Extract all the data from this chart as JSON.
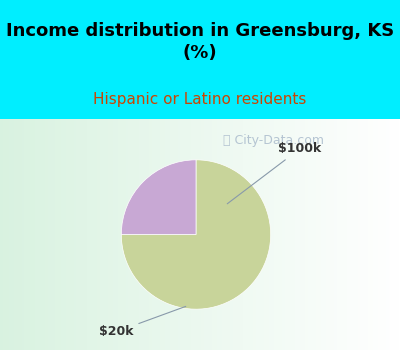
{
  "title": "Income distribution in Greensburg, KS\n(%)",
  "subtitle": "Hispanic or Latino residents",
  "title_fontsize": 13,
  "subtitle_fontsize": 11,
  "subtitle_color": "#cc4400",
  "background_top": "#00eeff",
  "chart_bg_left": "#d8f0e0",
  "chart_bg_right": "#ffffff",
  "slices": [
    {
      "label": "$20k",
      "value": 75,
      "color": "#c8d49a"
    },
    {
      "label": "$100k",
      "value": 25,
      "color": "#c8a8d4"
    }
  ],
  "watermark": "City-Data.com",
  "watermark_color": "#aabbcc",
  "watermark_fontsize": 9,
  "annotation_color": "#333333",
  "annotation_line_color": "#8899aa"
}
